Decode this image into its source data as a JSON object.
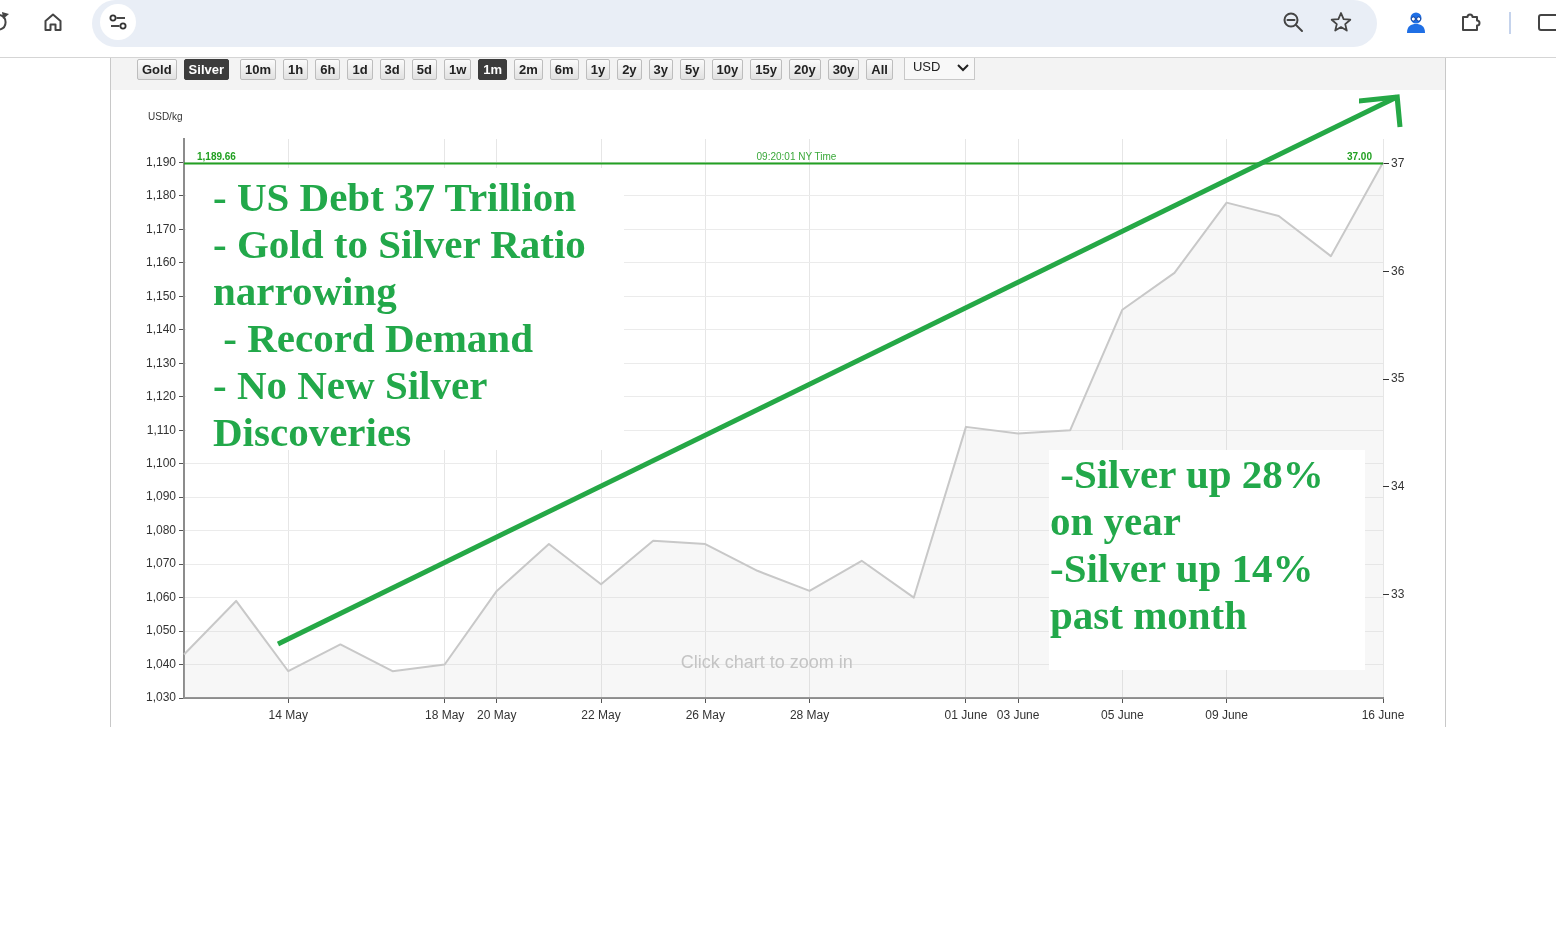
{
  "chart_data": {
    "type": "area",
    "ylabel": "USD/kg",
    "categories": [
      null,
      null,
      "14 May",
      null,
      null,
      "18 May",
      "20 May",
      null,
      "22 May",
      null,
      "26 May",
      null,
      "28 May",
      null,
      null,
      "01 June",
      "03 June",
      null,
      "05 June",
      null,
      "09 June",
      null,
      null,
      "16 June"
    ],
    "values": [
      1043,
      1059,
      1038,
      1046,
      1038,
      1040,
      1062,
      1076,
      1064,
      1077,
      1076,
      1068,
      1062,
      1071,
      1060,
      1111,
      1109,
      1110,
      1146,
      1157,
      1178,
      1174,
      1162,
      1190
    ],
    "color": "#c8c8c8",
    "ylim": [
      1030,
      1197
    ],
    "yticks": [
      {
        "value": 1030,
        "label": "1,030"
      },
      {
        "value": 1040,
        "label": "1,040"
      },
      {
        "value": 1050,
        "label": "1,050"
      },
      {
        "value": 1060,
        "label": "1,060"
      },
      {
        "value": 1070,
        "label": "1,070"
      },
      {
        "value": 1080,
        "label": "1,080"
      },
      {
        "value": 1090,
        "label": "1,090"
      },
      {
        "value": 1100,
        "label": "1,100"
      },
      {
        "value": 1110,
        "label": "1,110"
      },
      {
        "value": 1120,
        "label": "1,120"
      },
      {
        "value": 1130,
        "label": "1,130"
      },
      {
        "value": 1140,
        "label": "1,140"
      },
      {
        "value": 1150,
        "label": "1,150"
      },
      {
        "value": 1160,
        "label": "1,160"
      },
      {
        "value": 1170,
        "label": "1,170"
      },
      {
        "value": 1180,
        "label": "1,180"
      },
      {
        "value": 1190,
        "label": "1,190"
      }
    ],
    "y2lim": [
      32.04,
      37.23
    ],
    "y2ticks": [
      33,
      34,
      35,
      36,
      37
    ],
    "grid": true,
    "ref_lines": [
      {
        "axis": "y",
        "value": 1189.66,
        "label": "1,189.66",
        "color": "#22a022"
      }
    ],
    "annotations": [
      "09:20:01 NY Time",
      "37.00",
      "Click chart to zoom in",
      "- US Debt 37 Trillion\n- Gold to Silver Ratio narrowing\n - Record Demand\n- No New Silver Discoveries",
      " -Silver up 28% on year\n-Silver up 14% past month",
      "Gold",
      "Silver",
      "10m",
      "1h",
      "6h",
      "1d",
      "3d",
      "5d",
      "1w",
      "1m",
      "2m",
      "6m",
      "1y",
      "2y",
      "3y",
      "5y",
      "10y",
      "15y",
      "20y",
      "30y",
      "All",
      "USD"
    ]
  }
}
